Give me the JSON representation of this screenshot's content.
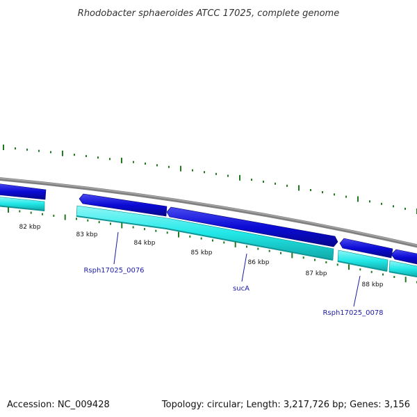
{
  "title": "Rhodobacter sphaeroides ATCC 17025, complete genome",
  "footer": {
    "accession": "Accession: NC_009428",
    "summary": "Topology: circular; Length: 3,217,726 bp; Genes: 3,156"
  },
  "colors": {
    "backbone": "#808080",
    "forward_feature": "#0b0bd6",
    "reverse_feature": "#22e8e8",
    "tick": "#1f7a1f",
    "label_line": "#1a1aa8"
  },
  "kbp_labels": [
    "82 kbp",
    "83 kbp",
    "84 kbp",
    "85 kbp",
    "86 kbp",
    "87 kbp",
    "88 kbp"
  ],
  "gene_labels": [
    {
      "name": "Rsph17025_0076"
    },
    {
      "name": "sucA"
    },
    {
      "name": "Rsph17025_0078"
    }
  ],
  "features": {
    "forward_count": 5,
    "reverse_count": 5
  }
}
